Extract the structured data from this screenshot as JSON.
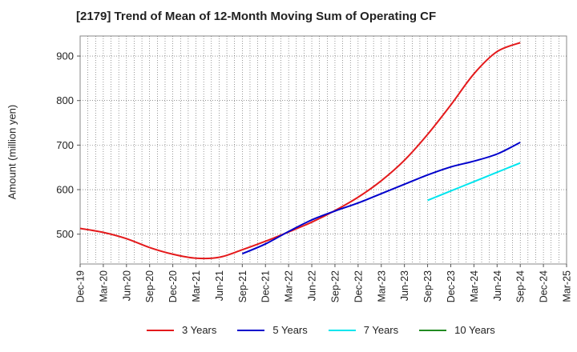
{
  "chart_data": {
    "type": "line",
    "title": "[2179]  Trend of Mean of 12-Month Moving Sum of Operating CF",
    "xlabel": "",
    "ylabel": "Amount (million yen)",
    "x_ticks": [
      "Dec-19",
      "Mar-20",
      "Jun-20",
      "Sep-20",
      "Dec-20",
      "Mar-21",
      "Jun-21",
      "Sep-21",
      "Dec-21",
      "Mar-22",
      "Jun-22",
      "Sep-22",
      "Dec-22",
      "Mar-23",
      "Jun-23",
      "Sep-23",
      "Dec-23",
      "Mar-24",
      "Jun-24",
      "Sep-24",
      "Dec-24",
      "Mar-25"
    ],
    "y_ticks": [
      500,
      600,
      700,
      800,
      900
    ],
    "ylim": [
      433,
      945
    ],
    "grid": true,
    "legend_position": "bottom",
    "series": [
      {
        "name": "3 Years",
        "color": "#e41a1c",
        "x": [
          "Dec-19",
          "Mar-20",
          "Jun-20",
          "Sep-20",
          "Dec-20",
          "Mar-21",
          "Jun-21",
          "Sep-21",
          "Dec-21",
          "Mar-22",
          "Jun-22",
          "Sep-22",
          "Dec-22",
          "Mar-23",
          "Jun-23",
          "Sep-23",
          "Dec-23",
          "Mar-24",
          "Jun-24",
          "Sep-24"
        ],
        "values": [
          513,
          504,
          490,
          470,
          455,
          446,
          448,
          465,
          484,
          505,
          527,
          553,
          583,
          620,
          666,
          724,
          790,
          860,
          910,
          930
        ]
      },
      {
        "name": "5 Years",
        "color": "#0000cc",
        "x": [
          "Sep-21",
          "Dec-21",
          "Mar-22",
          "Jun-22",
          "Sep-22",
          "Dec-22",
          "Mar-23",
          "Jun-23",
          "Sep-23",
          "Dec-23",
          "Mar-24",
          "Jun-24",
          "Sep-24"
        ],
        "values": [
          456,
          478,
          506,
          532,
          552,
          570,
          591,
          612,
          633,
          651,
          664,
          680,
          706
        ]
      },
      {
        "name": "7 Years",
        "color": "#00e5ee",
        "x": [
          "Sep-23",
          "Dec-23",
          "Mar-24",
          "Jun-24",
          "Sep-24"
        ],
        "values": [
          576,
          597,
          618,
          639,
          660
        ]
      },
      {
        "name": "10 Years",
        "color": "#228b22",
        "x": [],
        "values": []
      }
    ]
  }
}
